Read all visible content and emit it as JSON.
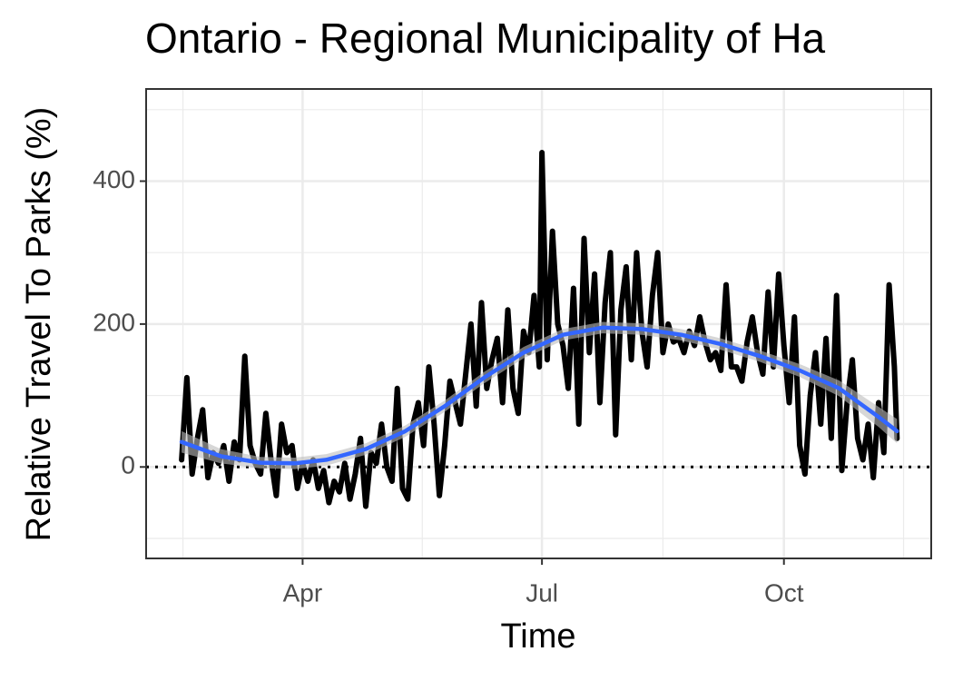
{
  "chart_data": {
    "type": "line",
    "title": "Ontario - Regional Municipality of Ha",
    "xlabel": "Time",
    "ylabel": "Relative Travel To Parks (%)",
    "xlim": [
      31.5,
      330
    ],
    "xticks": [
      {
        "value": 91,
        "label": "Apr"
      },
      {
        "value": 182,
        "label": "Jul"
      },
      {
        "value": 274,
        "label": "Oct"
      }
    ],
    "xminor_ticks": [
      45.5,
      136.5,
      228,
      319.5
    ],
    "ylim": [
      -128,
      529
    ],
    "yticks": [
      0,
      200,
      400
    ],
    "yminor_ticks": [
      -100,
      100,
      300,
      500
    ],
    "grid": true,
    "hline": 0,
    "series": [
      {
        "color": "#000000",
        "x": [
          45,
          47,
          49,
          51,
          53,
          55,
          57,
          59,
          61,
          63,
          65,
          67,
          69,
          71,
          73,
          75,
          77,
          79,
          81,
          83,
          85,
          87,
          89,
          91,
          93,
          95,
          97,
          99,
          101,
          103,
          105,
          107,
          109,
          111,
          113,
          115,
          117,
          119,
          121,
          123,
          125,
          127,
          129,
          131,
          133,
          135,
          137,
          139,
          141,
          143,
          145,
          147,
          149,
          151,
          153,
          155,
          157,
          159,
          161,
          163,
          165,
          167,
          169,
          171,
          173,
          175,
          177,
          179,
          181,
          182,
          184,
          186,
          188,
          190,
          192,
          194,
          196,
          198,
          200,
          202,
          204,
          206,
          208,
          210,
          212,
          214,
          216,
          218,
          220,
          222,
          224,
          226,
          228,
          230,
          232,
          234,
          236,
          238,
          240,
          242,
          244,
          246,
          248,
          250,
          252,
          254,
          256,
          258,
          260,
          262,
          264,
          266,
          268,
          270,
          272,
          274,
          276,
          278,
          280,
          282,
          284,
          286,
          288,
          290,
          292,
          294,
          296,
          298,
          300,
          302,
          304,
          306,
          308,
          310,
          312,
          314,
          316,
          317
        ],
        "values": [
          10,
          125,
          -10,
          40,
          80,
          -15,
          20,
          5,
          30,
          -20,
          35,
          10,
          155,
          30,
          5,
          -10,
          75,
          10,
          -40,
          60,
          20,
          30,
          -30,
          5,
          -20,
          10,
          -30,
          -5,
          -50,
          -20,
          -35,
          5,
          -45,
          -10,
          40,
          -55,
          20,
          5,
          60,
          0,
          -20,
          110,
          -30,
          -45,
          60,
          90,
          30,
          140,
          60,
          -40,
          30,
          120,
          90,
          60,
          130,
          200,
          85,
          230,
          110,
          150,
          180,
          90,
          220,
          110,
          75,
          190,
          160,
          240,
          140,
          440,
          150,
          330,
          200,
          170,
          110,
          250,
          60,
          320,
          160,
          270,
          90,
          230,
          300,
          45,
          220,
          280,
          150,
          300,
          190,
          140,
          240,
          300,
          160,
          200,
          175,
          180,
          160,
          190,
          170,
          210,
          175,
          150,
          160,
          135,
          255,
          140,
          140,
          120,
          175,
          210,
          160,
          130,
          245,
          140,
          270,
          170,
          90,
          210,
          30,
          -10,
          100,
          160,
          60,
          180,
          40,
          240,
          -5,
          90,
          150,
          40,
          10,
          60,
          -15,
          90,
          20,
          255,
          140,
          40
        ]
      },
      {
        "color": "#3366ff",
        "x": [
          45,
          60,
          75,
          88,
          100,
          115,
          130,
          145,
          160,
          175,
          190,
          205,
          220,
          235,
          250,
          265,
          280,
          295,
          310,
          317
        ],
        "values": [
          35,
          15,
          6,
          5,
          10,
          25,
          50,
          85,
          125,
          160,
          185,
          195,
          193,
          185,
          172,
          155,
          135,
          110,
          70,
          50
        ],
        "lower": [
          20,
          5,
          -2,
          -3,
          2,
          17,
          42,
          77,
          117,
          152,
          177,
          187,
          185,
          177,
          164,
          147,
          126,
          99,
          56,
          33
        ],
        "upper": [
          50,
          25,
          14,
          13,
          18,
          33,
          58,
          93,
          133,
          168,
          193,
          203,
          201,
          193,
          180,
          163,
          144,
          121,
          84,
          67
        ],
        "band_color": "#bdbdbd"
      }
    ]
  }
}
